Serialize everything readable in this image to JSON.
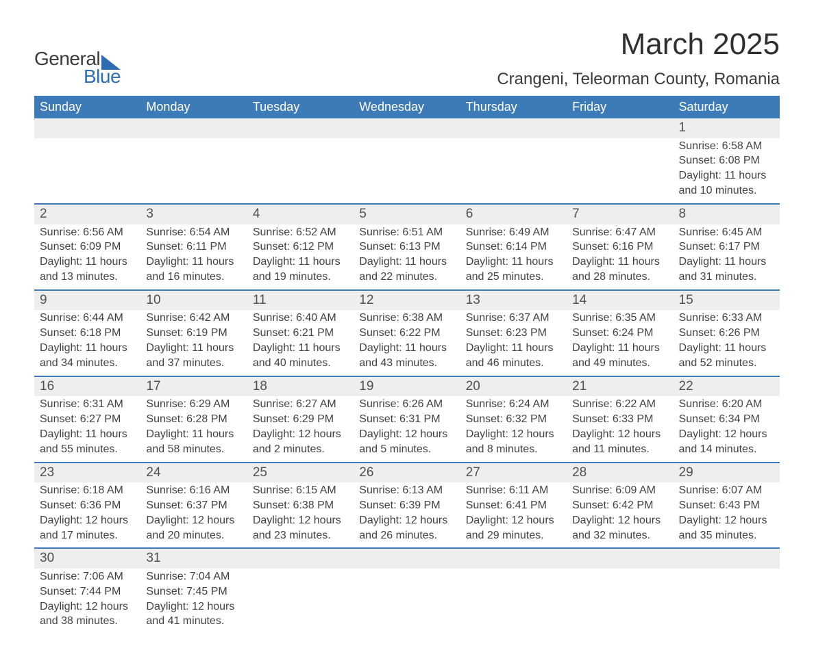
{
  "logo": {
    "part1": "General",
    "part2": "Blue"
  },
  "title": "March 2025",
  "location": "Crangeni, Teleorman County, Romania",
  "day_headers": [
    "Sunday",
    "Monday",
    "Tuesday",
    "Wednesday",
    "Thursday",
    "Friday",
    "Saturday"
  ],
  "colors": {
    "header_bg": "#3d7ab8",
    "header_text": "#ffffff",
    "daynum_bg": "#eeeeee",
    "row_border": "#3d7ab8",
    "body_text": "#424242",
    "logo_blue": "#2f6db3"
  },
  "weeks": [
    [
      null,
      null,
      null,
      null,
      null,
      null,
      {
        "n": "1",
        "sr": "Sunrise: 6:58 AM",
        "ss": "Sunset: 6:08 PM",
        "dl1": "Daylight: 11 hours",
        "dl2": "and 10 minutes."
      }
    ],
    [
      {
        "n": "2",
        "sr": "Sunrise: 6:56 AM",
        "ss": "Sunset: 6:09 PM",
        "dl1": "Daylight: 11 hours",
        "dl2": "and 13 minutes."
      },
      {
        "n": "3",
        "sr": "Sunrise: 6:54 AM",
        "ss": "Sunset: 6:11 PM",
        "dl1": "Daylight: 11 hours",
        "dl2": "and 16 minutes."
      },
      {
        "n": "4",
        "sr": "Sunrise: 6:52 AM",
        "ss": "Sunset: 6:12 PM",
        "dl1": "Daylight: 11 hours",
        "dl2": "and 19 minutes."
      },
      {
        "n": "5",
        "sr": "Sunrise: 6:51 AM",
        "ss": "Sunset: 6:13 PM",
        "dl1": "Daylight: 11 hours",
        "dl2": "and 22 minutes."
      },
      {
        "n": "6",
        "sr": "Sunrise: 6:49 AM",
        "ss": "Sunset: 6:14 PM",
        "dl1": "Daylight: 11 hours",
        "dl2": "and 25 minutes."
      },
      {
        "n": "7",
        "sr": "Sunrise: 6:47 AM",
        "ss": "Sunset: 6:16 PM",
        "dl1": "Daylight: 11 hours",
        "dl2": "and 28 minutes."
      },
      {
        "n": "8",
        "sr": "Sunrise: 6:45 AM",
        "ss": "Sunset: 6:17 PM",
        "dl1": "Daylight: 11 hours",
        "dl2": "and 31 minutes."
      }
    ],
    [
      {
        "n": "9",
        "sr": "Sunrise: 6:44 AM",
        "ss": "Sunset: 6:18 PM",
        "dl1": "Daylight: 11 hours",
        "dl2": "and 34 minutes."
      },
      {
        "n": "10",
        "sr": "Sunrise: 6:42 AM",
        "ss": "Sunset: 6:19 PM",
        "dl1": "Daylight: 11 hours",
        "dl2": "and 37 minutes."
      },
      {
        "n": "11",
        "sr": "Sunrise: 6:40 AM",
        "ss": "Sunset: 6:21 PM",
        "dl1": "Daylight: 11 hours",
        "dl2": "and 40 minutes."
      },
      {
        "n": "12",
        "sr": "Sunrise: 6:38 AM",
        "ss": "Sunset: 6:22 PM",
        "dl1": "Daylight: 11 hours",
        "dl2": "and 43 minutes."
      },
      {
        "n": "13",
        "sr": "Sunrise: 6:37 AM",
        "ss": "Sunset: 6:23 PM",
        "dl1": "Daylight: 11 hours",
        "dl2": "and 46 minutes."
      },
      {
        "n": "14",
        "sr": "Sunrise: 6:35 AM",
        "ss": "Sunset: 6:24 PM",
        "dl1": "Daylight: 11 hours",
        "dl2": "and 49 minutes."
      },
      {
        "n": "15",
        "sr": "Sunrise: 6:33 AM",
        "ss": "Sunset: 6:26 PM",
        "dl1": "Daylight: 11 hours",
        "dl2": "and 52 minutes."
      }
    ],
    [
      {
        "n": "16",
        "sr": "Sunrise: 6:31 AM",
        "ss": "Sunset: 6:27 PM",
        "dl1": "Daylight: 11 hours",
        "dl2": "and 55 minutes."
      },
      {
        "n": "17",
        "sr": "Sunrise: 6:29 AM",
        "ss": "Sunset: 6:28 PM",
        "dl1": "Daylight: 11 hours",
        "dl2": "and 58 minutes."
      },
      {
        "n": "18",
        "sr": "Sunrise: 6:27 AM",
        "ss": "Sunset: 6:29 PM",
        "dl1": "Daylight: 12 hours",
        "dl2": "and 2 minutes."
      },
      {
        "n": "19",
        "sr": "Sunrise: 6:26 AM",
        "ss": "Sunset: 6:31 PM",
        "dl1": "Daylight: 12 hours",
        "dl2": "and 5 minutes."
      },
      {
        "n": "20",
        "sr": "Sunrise: 6:24 AM",
        "ss": "Sunset: 6:32 PM",
        "dl1": "Daylight: 12 hours",
        "dl2": "and 8 minutes."
      },
      {
        "n": "21",
        "sr": "Sunrise: 6:22 AM",
        "ss": "Sunset: 6:33 PM",
        "dl1": "Daylight: 12 hours",
        "dl2": "and 11 minutes."
      },
      {
        "n": "22",
        "sr": "Sunrise: 6:20 AM",
        "ss": "Sunset: 6:34 PM",
        "dl1": "Daylight: 12 hours",
        "dl2": "and 14 minutes."
      }
    ],
    [
      {
        "n": "23",
        "sr": "Sunrise: 6:18 AM",
        "ss": "Sunset: 6:36 PM",
        "dl1": "Daylight: 12 hours",
        "dl2": "and 17 minutes."
      },
      {
        "n": "24",
        "sr": "Sunrise: 6:16 AM",
        "ss": "Sunset: 6:37 PM",
        "dl1": "Daylight: 12 hours",
        "dl2": "and 20 minutes."
      },
      {
        "n": "25",
        "sr": "Sunrise: 6:15 AM",
        "ss": "Sunset: 6:38 PM",
        "dl1": "Daylight: 12 hours",
        "dl2": "and 23 minutes."
      },
      {
        "n": "26",
        "sr": "Sunrise: 6:13 AM",
        "ss": "Sunset: 6:39 PM",
        "dl1": "Daylight: 12 hours",
        "dl2": "and 26 minutes."
      },
      {
        "n": "27",
        "sr": "Sunrise: 6:11 AM",
        "ss": "Sunset: 6:41 PM",
        "dl1": "Daylight: 12 hours",
        "dl2": "and 29 minutes."
      },
      {
        "n": "28",
        "sr": "Sunrise: 6:09 AM",
        "ss": "Sunset: 6:42 PM",
        "dl1": "Daylight: 12 hours",
        "dl2": "and 32 minutes."
      },
      {
        "n": "29",
        "sr": "Sunrise: 6:07 AM",
        "ss": "Sunset: 6:43 PM",
        "dl1": "Daylight: 12 hours",
        "dl2": "and 35 minutes."
      }
    ],
    [
      {
        "n": "30",
        "sr": "Sunrise: 7:06 AM",
        "ss": "Sunset: 7:44 PM",
        "dl1": "Daylight: 12 hours",
        "dl2": "and 38 minutes."
      },
      {
        "n": "31",
        "sr": "Sunrise: 7:04 AM",
        "ss": "Sunset: 7:45 PM",
        "dl1": "Daylight: 12 hours",
        "dl2": "and 41 minutes."
      },
      null,
      null,
      null,
      null,
      null
    ]
  ]
}
